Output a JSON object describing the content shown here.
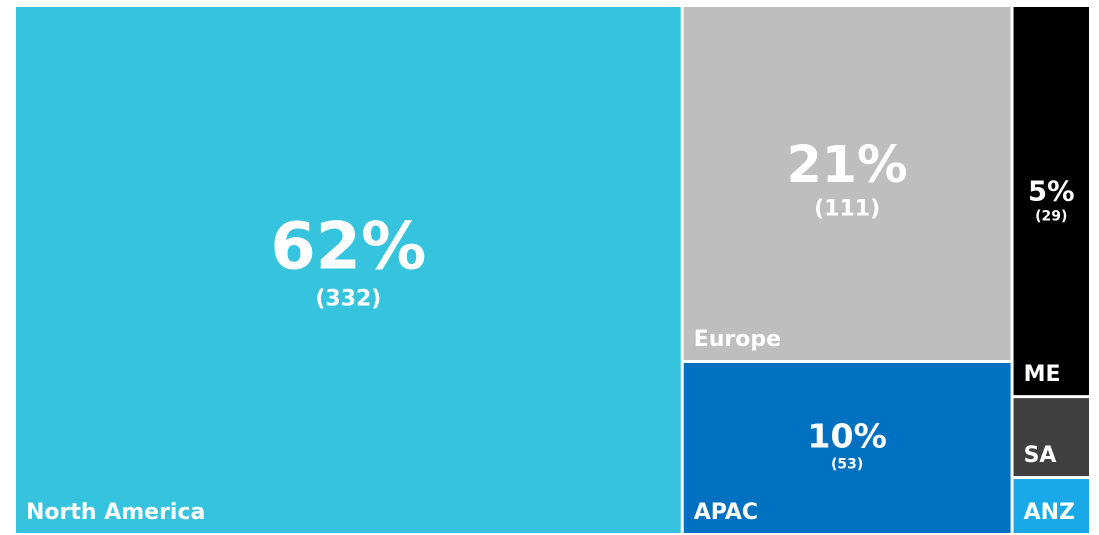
{
  "chart_data": {
    "type": "treemap",
    "categories": [
      "North America",
      "Europe",
      "APAC",
      "ME",
      "SA",
      "ANZ"
    ],
    "values": [
      332,
      111,
      53,
      29,
      6,
      4
    ],
    "value_labels": [
      "(332)",
      "(111)",
      "(53)",
      "(29)",
      null,
      null
    ],
    "percents": [
      62,
      21,
      10,
      5,
      null,
      null
    ],
    "percent_labels": [
      "62%",
      "21%",
      "10%",
      "5%",
      null,
      null
    ],
    "colors": [
      "#35c3de",
      "#bebebe",
      "#0070c0",
      "#000000",
      "#404040",
      "#1aa9e8"
    ]
  }
}
